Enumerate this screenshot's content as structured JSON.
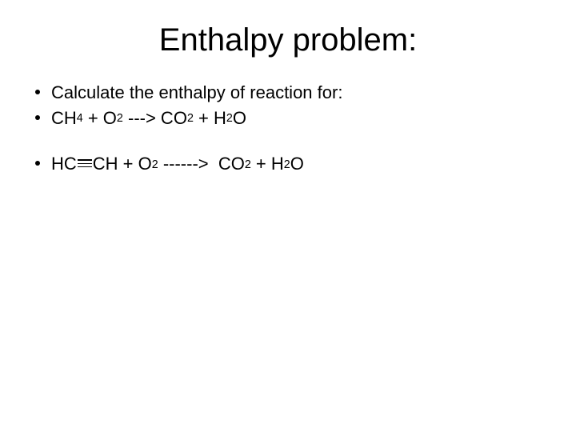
{
  "slide": {
    "title": "Enthalpy problem:",
    "title_fontsize": 40,
    "body_fontsize": 22,
    "background_color": "#ffffff",
    "text_color": "#000000",
    "bullets": [
      {
        "type": "text",
        "text": "Calculate the enthalpy of reaction for:"
      },
      {
        "type": "equation",
        "tokens": [
          {
            "t": "CH"
          },
          {
            "t": "4",
            "sub": true
          },
          {
            "t": " + O"
          },
          {
            "t": "2",
            "sub": true
          },
          {
            "t": " ---> CO"
          },
          {
            "t": "2",
            "sub": true
          },
          {
            "t": " + H"
          },
          {
            "t": "2",
            "sub": true
          },
          {
            "t": "O"
          }
        ]
      },
      {
        "type": "spacer"
      },
      {
        "type": "equation",
        "tokens": [
          {
            "t": "HC"
          },
          {
            "triple": true
          },
          {
            "t": "CH + O"
          },
          {
            "t": "2",
            "sub": true
          },
          {
            "t": " ------>  CO"
          },
          {
            "t": "2",
            "sub": true
          },
          {
            "t": " + H"
          },
          {
            "t": "2",
            "sub": true
          },
          {
            "t": "O"
          }
        ]
      }
    ]
  }
}
